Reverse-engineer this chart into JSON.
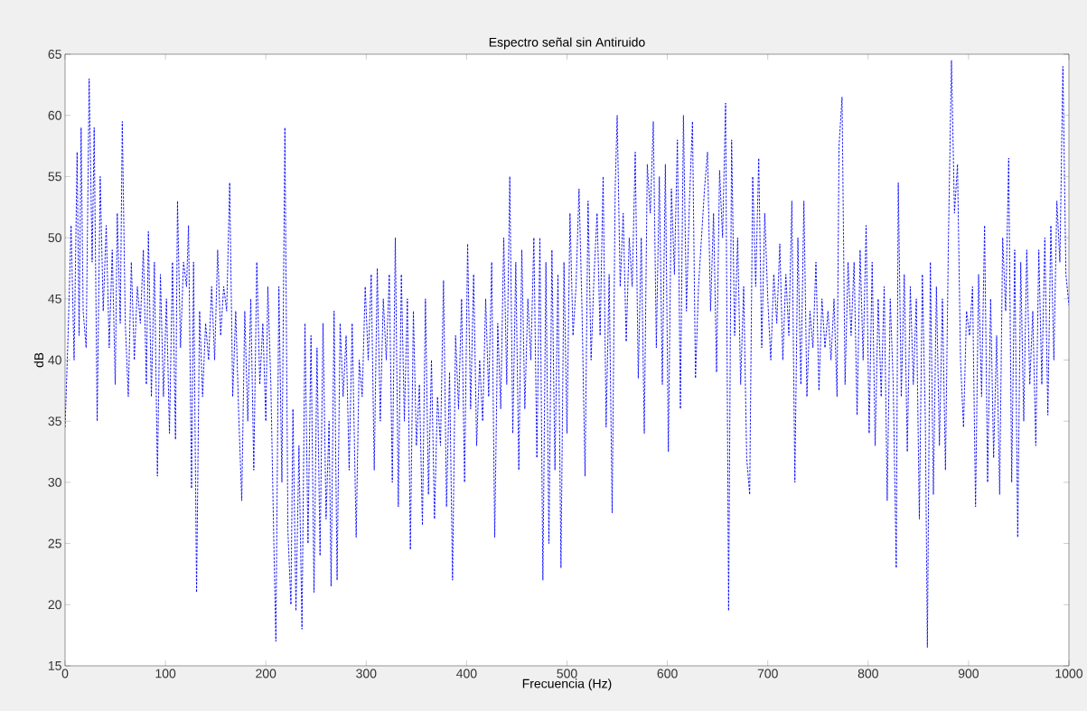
{
  "chart_data": {
    "type": "line",
    "title": "Espectro señal sin Antiruido",
    "xlabel": "Frecuencia (Hz)",
    "ylabel": "dB",
    "xlim": [
      0,
      1000
    ],
    "ylim": [
      15,
      65
    ],
    "xticks": [
      0,
      100,
      200,
      300,
      400,
      500,
      600,
      700,
      800,
      900,
      1000
    ],
    "yticks": [
      15,
      20,
      25,
      30,
      35,
      40,
      45,
      50,
      55,
      60,
      65
    ],
    "grid": false,
    "marker": "none",
    "line_style": "dashed",
    "series": [
      {
        "color": "#0000ff",
        "x": [
          0,
          3,
          6,
          9,
          12,
          14,
          16,
          18,
          21,
          24,
          27,
          29,
          32,
          35,
          38,
          41,
          44,
          47,
          50,
          52,
          55,
          57,
          60,
          63,
          66,
          69,
          72,
          75,
          78,
          81,
          83,
          86,
          89,
          92,
          95,
          98,
          101,
          104,
          107,
          110,
          112,
          115,
          118,
          121,
          123,
          126,
          128,
          131,
          134,
          137,
          140,
          143,
          146,
          149,
          152,
          155,
          158,
          161,
          164,
          167,
          170,
          173,
          176,
          179,
          182,
          185,
          188,
          191,
          194,
          197,
          200,
          202,
          205,
          208,
          210,
          213,
          216,
          219,
          222,
          225,
          227,
          230,
          233,
          236,
          239,
          242,
          245,
          248,
          251,
          254,
          257,
          260,
          263,
          265,
          268,
          271,
          274,
          277,
          280,
          283,
          286,
          290,
          293,
          296,
          299,
          302,
          305,
          308,
          311,
          314,
          317,
          320,
          323,
          326,
          329,
          332,
          335,
          338,
          341,
          344,
          347,
          350,
          353,
          356,
          359,
          362,
          365,
          368,
          371,
          374,
          377,
          380,
          383,
          386,
          389,
          392,
          395,
          398,
          401,
          404,
          407,
          410,
          413,
          416,
          419,
          422,
          425,
          428,
          431,
          434,
          437,
          440,
          443,
          446,
          449,
          452,
          455,
          458,
          461,
          464,
          467,
          470,
          473,
          476,
          479,
          482,
          485,
          488,
          491,
          494,
          497,
          500,
          503,
          506,
          509,
          512,
          515,
          518,
          521,
          524,
          527,
          530,
          533,
          536,
          539,
          542,
          545,
          548,
          550,
          553,
          556,
          559,
          562,
          565,
          568,
          571,
          574,
          577,
          580,
          583,
          586,
          589,
          592,
          595,
          598,
          601,
          604,
          607,
          610,
          613,
          616,
          619,
          622,
          625,
          628,
          631,
          634,
          637,
          640,
          643,
          646,
          649,
          652,
          655,
          658,
          661,
          664,
          667,
          670,
          673,
          676,
          679,
          682,
          685,
          688,
          691,
          694,
          697,
          700,
          703,
          706,
          709,
          712,
          715,
          718,
          721,
          724,
          727,
          730,
          733,
          736,
          739,
          742,
          745,
          748,
          751,
          754,
          757,
          760,
          763,
          766,
          769,
          771,
          774,
          777,
          780,
          783,
          786,
          789,
          792,
          795,
          798,
          801,
          804,
          807,
          810,
          813,
          816,
          819,
          822,
          825,
          828,
          830,
          833,
          836,
          839,
          842,
          845,
          848,
          851,
          854,
          857,
          859,
          862,
          865,
          868,
          871,
          874,
          877,
          880,
          883,
          886,
          889,
          892,
          895,
          898,
          901,
          904,
          907,
          910,
          913,
          916,
          919,
          922,
          925,
          928,
          931,
          934,
          937,
          940,
          943,
          946,
          949,
          952,
          955,
          958,
          961,
          964,
          967,
          970,
          973,
          976,
          979,
          982,
          985,
          988,
          991,
          994,
          997,
          1000
        ],
        "values": [
          34.5,
          42,
          51,
          40,
          57,
          42,
          59,
          44,
          41,
          63,
          48,
          59,
          35,
          55,
          44,
          51,
          41,
          49,
          38,
          52,
          43,
          59.5,
          43,
          37,
          48,
          40,
          46,
          43,
          49,
          38,
          50.5,
          37,
          48,
          30.5,
          47,
          37,
          45,
          34,
          48,
          33.5,
          53,
          41,
          48,
          46,
          51,
          29.5,
          48,
          21,
          44,
          37,
          43,
          40,
          46,
          40,
          49,
          42,
          46,
          44,
          54.5,
          37,
          44,
          35.5,
          28.5,
          44,
          35,
          45,
          31,
          48,
          38,
          43,
          35,
          46,
          38,
          25,
          17,
          46,
          30,
          59,
          26,
          20,
          36,
          19.5,
          33,
          18,
          43,
          25,
          42,
          21,
          41,
          24,
          43,
          27,
          35,
          21.5,
          44,
          22,
          43,
          37,
          42,
          31,
          43,
          25.5,
          40,
          37,
          46,
          40,
          47,
          31,
          47.5,
          35,
          45,
          40,
          47,
          30,
          50,
          28,
          47,
          35,
          45,
          24.5,
          44,
          33,
          38,
          26.5,
          45,
          29,
          40,
          27,
          37,
          33,
          46.5,
          28,
          39,
          22,
          42,
          36,
          45,
          30,
          49.5,
          36,
          47,
          33,
          40,
          35,
          45,
          37,
          48,
          25.5,
          43,
          36,
          50,
          38,
          55,
          34,
          48,
          31,
          49,
          36,
          45,
          40,
          50,
          32,
          50,
          22,
          48,
          25,
          49,
          31,
          47,
          23,
          48,
          34,
          52,
          42,
          46,
          54,
          44,
          30.5,
          53,
          40,
          47,
          52,
          42,
          55,
          34.5,
          47,
          27.5,
          54,
          60,
          46,
          52,
          41.5,
          50,
          46,
          57,
          38.5,
          50,
          34,
          56,
          52,
          59.5,
          41,
          55,
          38,
          56,
          32.5,
          54,
          47,
          58,
          36,
          60,
          44,
          53,
          59.5,
          38.5,
          46,
          50,
          54,
          57,
          44,
          52,
          39,
          55.5,
          50,
          61,
          19.5,
          58,
          42,
          50,
          38,
          46,
          32,
          29,
          55,
          46,
          56.5,
          41,
          52,
          45,
          40,
          47,
          43,
          49.5,
          40,
          47,
          42,
          53,
          30,
          50,
          38,
          53,
          37,
          44,
          41,
          48,
          37.5,
          45,
          41,
          44,
          40,
          45,
          37,
          57.5,
          61.5,
          38,
          48,
          42,
          48,
          35.5,
          49,
          40,
          51,
          34,
          48,
          33,
          45,
          37,
          46,
          28.5,
          45,
          38,
          23,
          54.5,
          37,
          47,
          32.5,
          46,
          38,
          45,
          27,
          47,
          35,
          16.5,
          48,
          29,
          46,
          33,
          45,
          31,
          50,
          64.5,
          52,
          56,
          40,
          34.5,
          44,
          42,
          46,
          28,
          47,
          37,
          51,
          30,
          45,
          32,
          42,
          29,
          50,
          44,
          56.5,
          30,
          49,
          25.5,
          48,
          35,
          49,
          38,
          44,
          33,
          49,
          38,
          50,
          35.5,
          51,
          40,
          53,
          48,
          64,
          47,
          44.5
        ]
      }
    ]
  }
}
